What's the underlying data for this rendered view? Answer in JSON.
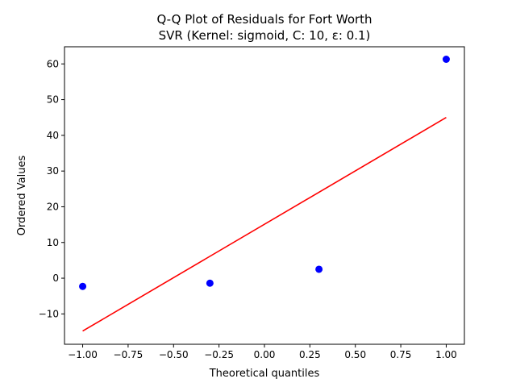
{
  "chart_data": {
    "type": "scatter",
    "title_line1": "Q-Q Plot of Residuals for Fort Worth",
    "title_line2": "SVR (Kernel: sigmoid, C: 10, ε: 0.1)",
    "xlabel": "Theoretical quantiles",
    "ylabel": "Ordered Values",
    "xlim": [
      -1.1,
      1.1
    ],
    "ylim": [
      -18.5,
      64.8
    ],
    "x_ticks": [
      -1.0,
      -0.75,
      -0.5,
      -0.25,
      0.0,
      0.25,
      0.5,
      0.75,
      1.0
    ],
    "x_tick_labels": [
      "−1.00",
      "−0.75",
      "−0.50",
      "−0.25",
      "0.00",
      "0.25",
      "0.50",
      "0.75",
      "1.00"
    ],
    "y_ticks": [
      -10,
      0,
      10,
      20,
      30,
      40,
      50,
      60
    ],
    "y_tick_labels": [
      "−10",
      "0",
      "10",
      "20",
      "30",
      "40",
      "50",
      "60"
    ],
    "grid": false,
    "points": [
      {
        "x": -1.0,
        "y": -2.3
      },
      {
        "x": -0.3,
        "y": -1.4
      },
      {
        "x": 0.3,
        "y": 2.5
      },
      {
        "x": 1.0,
        "y": 61.3
      }
    ],
    "fit_line": {
      "x": [
        -1.0,
        1.0
      ],
      "y": [
        -14.8,
        45.0
      ]
    },
    "colors": {
      "points": "#0000ff",
      "fit_line": "#ff0000"
    }
  }
}
